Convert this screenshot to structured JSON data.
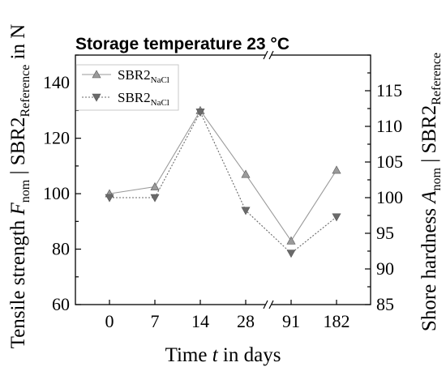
{
  "chart_data": {
    "type": "line",
    "title": "Storage temperature 23 °C",
    "xlabel": {
      "pre": "Time ",
      "var": "t",
      "post": " in days"
    },
    "ylabel_left": {
      "pre": "Tensile strength ",
      "var": "F",
      "sub": "nom",
      "mid": " | SBR2",
      "sub2": "Reference",
      "post": " in N"
    },
    "ylabel_right": {
      "pre": "Shore hardness ",
      "var": "A",
      "sub": "nom",
      "mid": " | SBR2",
      "sub2": "Reference"
    },
    "categories": [
      "0",
      "7",
      "14",
      "28",
      "91",
      "182"
    ],
    "axis_break_between": [
      "28",
      "91"
    ],
    "y_left": {
      "min": 60,
      "max": 150,
      "ticks": [
        60,
        80,
        100,
        120,
        140
      ]
    },
    "y_right": {
      "min": 85,
      "max": 120,
      "ticks": [
        85,
        90,
        95,
        100,
        105,
        110,
        115
      ]
    },
    "series": [
      {
        "name": "SBR2",
        "name_sub": "NaCl",
        "axis": "left",
        "marker": "triangle-up",
        "line": "solid",
        "color": "#9a9a9a",
        "values": [
          100,
          102.5,
          130,
          107,
          83,
          108.5
        ]
      },
      {
        "name": "SBR2",
        "name_sub": "NaCl",
        "axis": "right",
        "marker": "triangle-down",
        "line": "dotted",
        "color": "#6a6a6a",
        "values": [
          100,
          100,
          112,
          98.2,
          92.2,
          97.3
        ]
      }
    ]
  }
}
